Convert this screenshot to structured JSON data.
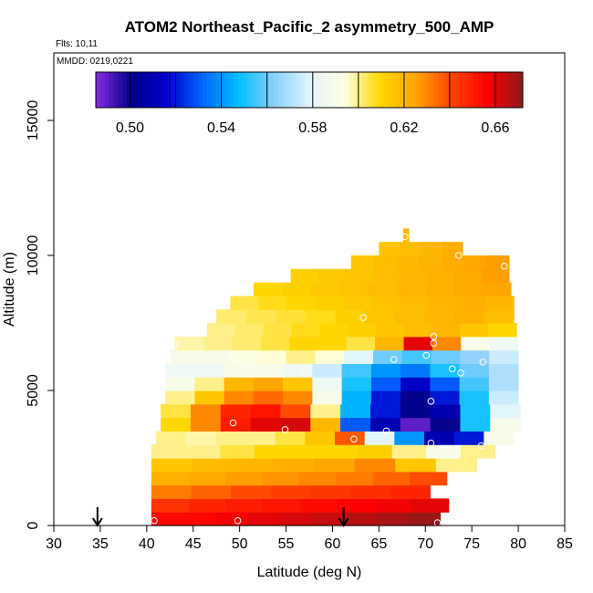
{
  "chart_data": {
    "type": "heatmap",
    "title": "ATOM2 Northeast_Pacific_2 asymmetry_500_AMP",
    "flights_label": "Flts: 10,11",
    "dates_label": "MMDD: 0219,0221",
    "xlabel": "Latitude (deg N)",
    "ylabel": "Altitude (m)",
    "xlim": [
      30,
      85
    ],
    "ylim": [
      0,
      17500
    ],
    "xticks": [
      "30",
      "35",
      "40",
      "45",
      "50",
      "55",
      "60",
      "65",
      "70",
      "75",
      "80",
      "85"
    ],
    "yticks": [
      "0",
      "5000",
      "10000",
      "15000"
    ],
    "colorbar": {
      "range": [
        0.485,
        0.672
      ],
      "tick_labels": [
        "0.50",
        "0.54",
        "0.58",
        "0.62",
        "0.66"
      ],
      "tick_values": [
        0.5,
        0.54,
        0.58,
        0.62,
        0.66
      ],
      "colors": [
        "#8a2be2",
        "#00008b",
        "#0000cd",
        "#0066ff",
        "#00bfff",
        "#87cefa",
        "#e0f4ff",
        "#ffffe0",
        "#ffd700",
        "#ffa500",
        "#ff4500",
        "#ff0000",
        "#8b1a1a"
      ]
    },
    "arrows_at_latitude": [
      34.7,
      61.2
    ],
    "layers": [
      {
        "alt": 0,
        "lat_start": 40.5,
        "lat_end": 71.6,
        "values": [
          0.655,
          0.655,
          0.658,
          0.66,
          0.662,
          0.664,
          0.666,
          0.668,
          0.67
        ]
      },
      {
        "alt": 500,
        "lat_start": 40.5,
        "lat_end": 72.5,
        "values": [
          0.645,
          0.648,
          0.65,
          0.652,
          0.654,
          0.656,
          0.658,
          0.66
        ]
      },
      {
        "alt": 1000,
        "lat_start": 40.5,
        "lat_end": 70.5,
        "values": [
          0.632,
          0.636,
          0.64,
          0.642,
          0.644,
          0.646,
          0.648
        ]
      },
      {
        "alt": 1500,
        "lat_start": 40.5,
        "lat_end": 72.3,
        "values": [
          0.622,
          0.624,
          0.626,
          0.628,
          0.63,
          0.632,
          0.636,
          0.64
        ]
      },
      {
        "alt": 2000,
        "lat_start": 40.5,
        "lat_end": 75.5,
        "values": [
          0.615,
          0.618,
          0.62,
          0.622,
          0.625,
          0.63,
          0.615,
          0.6
        ]
      },
      {
        "alt": 2500,
        "lat_start": 40.5,
        "lat_end": 77.5,
        "values": [
          0.6,
          0.6,
          0.605,
          0.61,
          0.61,
          0.61,
          0.612,
          0.6,
          0.59,
          0.6
        ]
      },
      {
        "alt": 3000,
        "lat_start": 41.0,
        "lat_end": 79.5,
        "values": [
          0.6,
          0.598,
          0.6,
          0.6,
          0.605,
          0.615,
          0.638,
          0.58,
          0.54,
          0.51,
          0.52,
          0.59
        ]
      },
      {
        "alt": 3500,
        "lat_start": 41.5,
        "lat_end": 80.2,
        "values": [
          0.61,
          0.63,
          0.65,
          0.66,
          0.662,
          0.62,
          0.53,
          0.51,
          0.49,
          0.5,
          0.55,
          0.59
        ]
      },
      {
        "alt": 4000,
        "lat_start": 41.5,
        "lat_end": 80.2,
        "values": [
          0.605,
          0.63,
          0.648,
          0.652,
          0.64,
          0.6,
          0.545,
          0.52,
          0.5,
          0.51,
          0.55,
          0.58
        ]
      },
      {
        "alt": 4500,
        "lat_start": 42.0,
        "lat_end": 80.0,
        "values": [
          0.6,
          0.615,
          0.63,
          0.635,
          0.63,
          0.59,
          0.545,
          0.52,
          0.5,
          0.52,
          0.55,
          0.575
        ]
      },
      {
        "alt": 5000,
        "lat_start": 42.0,
        "lat_end": 80.0,
        "values": [
          0.59,
          0.6,
          0.62,
          0.625,
          0.615,
          0.585,
          0.55,
          0.53,
          0.515,
          0.53,
          0.555,
          0.57
        ]
      },
      {
        "alt": 5500,
        "lat_start": 42.0,
        "lat_end": 80.0,
        "values": [
          0.585,
          0.585,
          0.59,
          0.59,
          0.585,
          0.575,
          0.555,
          0.54,
          0.535,
          0.55,
          0.56,
          0.57
        ]
      },
      {
        "alt": 6000,
        "lat_start": 42.5,
        "lat_end": 80.0,
        "values": [
          0.59,
          0.59,
          0.592,
          0.595,
          0.6,
          0.595,
          0.58,
          0.56,
          0.555,
          0.56,
          0.565,
          0.575
        ]
      },
      {
        "alt": 6500,
        "lat_start": 43.0,
        "lat_end": 80.0,
        "values": [
          0.598,
          0.6,
          0.602,
          0.605,
          0.61,
          0.61,
          0.605,
          0.62,
          0.66,
          0.63,
          0.59,
          0.585
        ]
      },
      {
        "alt": 7000,
        "lat_start": 46.5,
        "lat_end": 79.8,
        "values": [
          0.6,
          0.602,
          0.605,
          0.608,
          0.61,
          0.612,
          0.615,
          0.618,
          0.62,
          0.615,
          0.61
        ]
      },
      {
        "alt": 7500,
        "lat_start": 47.5,
        "lat_end": 79.5,
        "values": [
          0.602,
          0.604,
          0.606,
          0.608,
          0.612,
          0.615,
          0.618,
          0.62,
          0.622,
          0.618
        ]
      },
      {
        "alt": 8000,
        "lat_start": 49.0,
        "lat_end": 79.5,
        "values": [
          0.605,
          0.608,
          0.61,
          0.612,
          0.614,
          0.616,
          0.618,
          0.62,
          0.622,
          0.62
        ]
      },
      {
        "alt": 8500,
        "lat_start": 51.5,
        "lat_end": 79.2,
        "values": [
          0.61,
          0.612,
          0.614,
          0.616,
          0.618,
          0.62,
          0.622,
          0.624,
          0.625
        ]
      },
      {
        "alt": 9000,
        "lat_start": 55.5,
        "lat_end": 79.0,
        "values": [
          0.612,
          0.614,
          0.616,
          0.618,
          0.62,
          0.622,
          0.624,
          0.626
        ]
      },
      {
        "alt": 9500,
        "lat_start": 62.0,
        "lat_end": 79.0,
        "values": [
          0.615,
          0.617,
          0.619,
          0.621,
          0.623,
          0.625,
          0.626
        ]
      },
      {
        "alt": 10000,
        "lat_start": 65.0,
        "lat_end": 74.0,
        "values": [
          0.616,
          0.618,
          0.62,
          0.622
        ]
      },
      {
        "alt": 10500,
        "lat_start": 67.6,
        "lat_end": 68.2,
        "values": [
          0.62
        ]
      }
    ],
    "sample_points": [
      {
        "lat": 40.8,
        "alt": 180
      },
      {
        "lat": 49.8,
        "alt": 180
      },
      {
        "lat": 71.3,
        "alt": 100
      },
      {
        "lat": 49.3,
        "alt": 3800
      },
      {
        "lat": 54.9,
        "alt": 3550
      },
      {
        "lat": 62.3,
        "alt": 3200
      },
      {
        "lat": 65.8,
        "alt": 3500
      },
      {
        "lat": 70.6,
        "alt": 3050
      },
      {
        "lat": 76.0,
        "alt": 2950
      },
      {
        "lat": 70.6,
        "alt": 4600
      },
      {
        "lat": 72.9,
        "alt": 5800
      },
      {
        "lat": 73.8,
        "alt": 5650
      },
      {
        "lat": 76.2,
        "alt": 6050
      },
      {
        "lat": 66.6,
        "alt": 6150
      },
      {
        "lat": 51.0,
        "alt": 5800
      },
      {
        "lat": 57.0,
        "alt": 5800
      },
      {
        "lat": 70.1,
        "alt": 6300
      },
      {
        "lat": 70.9,
        "alt": 6750
      },
      {
        "lat": 70.9,
        "alt": 7000
      },
      {
        "lat": 63.3,
        "alt": 7700
      },
      {
        "lat": 73.6,
        "alt": 10000
      },
      {
        "lat": 78.5,
        "alt": 9600
      },
      {
        "lat": 80.0,
        "alt": 3800
      },
      {
        "lat": 67.8,
        "alt": 10700
      },
      {
        "lat": 43.0,
        "alt": 6700
      }
    ]
  }
}
